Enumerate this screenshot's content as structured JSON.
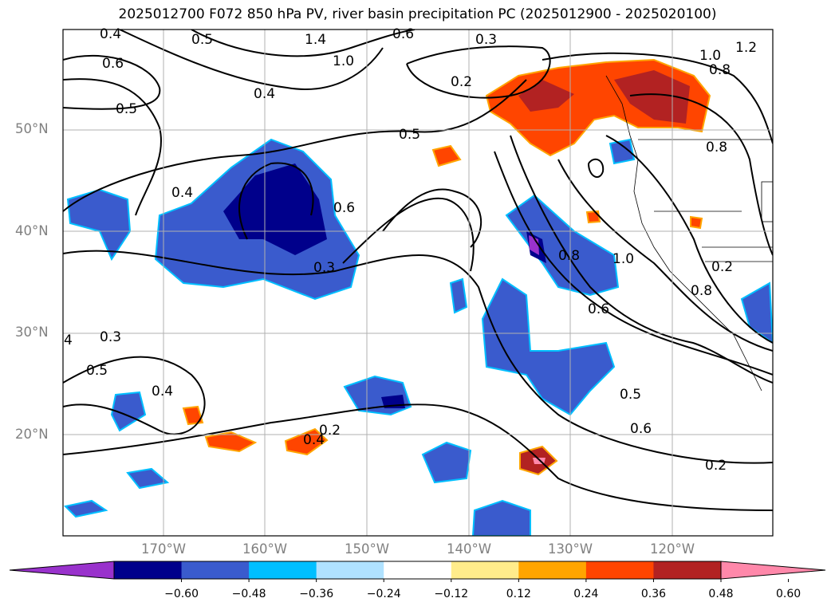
{
  "title": "2025012700 F072 850 hPa PV, river basin precipitation PC (2025012900 - 2025020100)",
  "map": {
    "lat_labels": [
      "50°N",
      "40°N",
      "30°N",
      "20°N"
    ],
    "lon_labels": [
      "170°W",
      "160°W",
      "150°W",
      "140°W",
      "130°W",
      "120°W"
    ],
    "contour_labels": [
      "0.4",
      "0.5",
      "1.4",
      "1.0",
      "0.6",
      "0.3",
      "1.2",
      "1.0",
      "0.8",
      "0.6",
      "0.5",
      "0.4",
      "0.2",
      "0.5",
      "0.4",
      "0.6",
      "0.8",
      "1.0",
      "0.8",
      "0.3",
      "0.8",
      "0.6",
      "0.5",
      "0.6",
      "0.2",
      "0.2",
      "0.3",
      "0.4",
      "0.5",
      "0.4",
      "0.2",
      "4"
    ],
    "grid": true
  },
  "colorbar": {
    "ticks": [
      "−0.60",
      "−0.48",
      "−0.36",
      "−0.24",
      "−0.12",
      "0.12",
      "0.24",
      "0.36",
      "0.48",
      "0.60"
    ],
    "colors": [
      "#9932cc",
      "#00008b",
      "#3a5bcd",
      "#00bfff",
      "#b0e2ff",
      "#ffffff",
      "#ffec8b",
      "#ffa500",
      "#ff4500",
      "#b22222",
      "#ff88aa"
    ]
  }
}
